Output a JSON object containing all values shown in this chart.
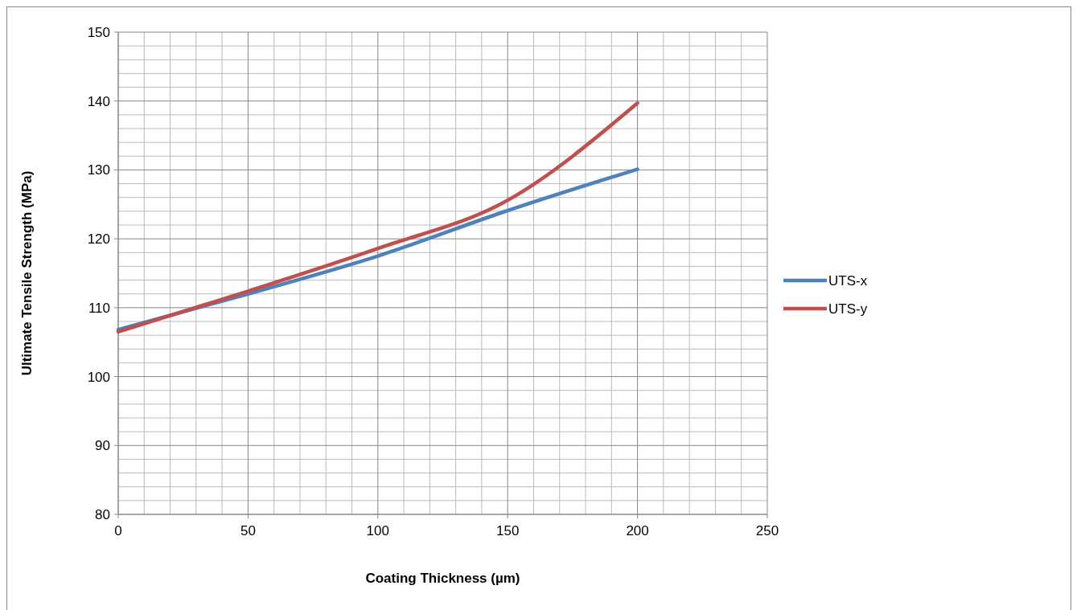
{
  "chart_data": {
    "type": "line",
    "xlabel": "Coating Thickness (µm)",
    "ylabel": "Ultimate Tensile Strength  (MPa)",
    "x": [
      0,
      50,
      100,
      150,
      200
    ],
    "series": [
      {
        "name": "UTS-x",
        "color": "#4f81bd",
        "values": [
          106.8,
          112.0,
          117.5,
          124.1,
          130.1
        ]
      },
      {
        "name": "UTS-y",
        "color": "#c0504d",
        "values": [
          106.5,
          112.4,
          118.6,
          125.6,
          139.7
        ]
      }
    ],
    "xlim": [
      0,
      250
    ],
    "xticks": [
      0,
      50,
      100,
      150,
      200,
      250
    ],
    "ylim": [
      80,
      150
    ],
    "yticks": [
      80,
      90,
      100,
      110,
      120,
      130,
      140,
      150
    ],
    "grid": true,
    "legend": "right",
    "marker": "none",
    "line_style": "solid"
  }
}
